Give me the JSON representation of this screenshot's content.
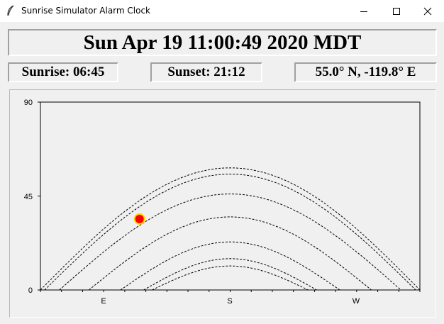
{
  "window": {
    "title": "Sunrise Simulator Alarm Clock"
  },
  "clock": {
    "datetime": "Sun Apr 19 11:00:49 2020 MDT"
  },
  "info": {
    "sunrise": "Sunrise: 06:45",
    "sunset": "Sunset: 21:12",
    "location": "55.0° N, -119.8° E"
  },
  "colors": {
    "sun": "#ff0000",
    "sun_outline": "#ffd800",
    "curve": "#000000"
  },
  "chart_data": {
    "type": "line",
    "title": "",
    "xlabel": "",
    "ylabel": "",
    "x_ticks": [
      "E",
      "S",
      "W"
    ],
    "y_ticks": [
      "0",
      "45",
      "90"
    ],
    "ylim": [
      0,
      90
    ],
    "xlim": [
      0,
      180
    ],
    "series": [
      {
        "start": 0,
        "end": 180,
        "peak": 58.5
      },
      {
        "start": 2,
        "end": 178,
        "peak": 55.5
      },
      {
        "start": 9,
        "end": 171,
        "peak": 46
      },
      {
        "start": 23,
        "end": 157,
        "peak": 35
      },
      {
        "start": 38,
        "end": 142,
        "peak": 23
      },
      {
        "start": 49,
        "end": 131,
        "peak": 15
      },
      {
        "start": 53,
        "end": 127,
        "peak": 11.5
      }
    ],
    "sun": {
      "x": 47,
      "y": 34
    }
  }
}
